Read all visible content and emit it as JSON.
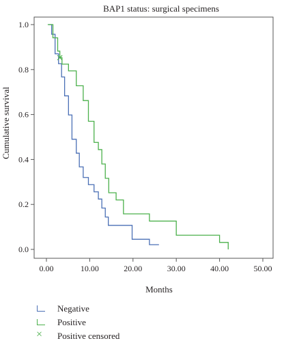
{
  "chart_data": {
    "type": "line",
    "title": "BAP1 status: surgical specimens",
    "xlabel": "Months",
    "ylabel": "Cumulative survival",
    "xlim": [
      0,
      50
    ],
    "ylim": [
      0,
      1.0
    ],
    "x_ticks": [
      "0.00",
      "10.00",
      "20.00",
      "30.00",
      "40.00",
      "50.00"
    ],
    "y_ticks": [
      "0.0",
      "0.2",
      "0.4",
      "0.6",
      "0.8",
      "1.0"
    ],
    "grid": false,
    "legend_placement": "bottom-left",
    "series": [
      {
        "name": "Negative",
        "color": "#4a6fb5",
        "x": [
          0.5,
          1.2,
          2.0,
          2.8,
          3.5,
          4.2,
          5.1,
          5.9,
          6.9,
          7.6,
          8.5,
          9.7,
          11.0,
          12.0,
          12.8,
          13.6,
          14.3,
          15.0,
          19.8,
          23.8,
          26.0
        ],
        "y": [
          1.0,
          0.957,
          0.87,
          0.826,
          0.767,
          0.683,
          0.598,
          0.49,
          0.428,
          0.367,
          0.32,
          0.288,
          0.256,
          0.224,
          0.184,
          0.144,
          0.107,
          0.107,
          0.045,
          0.021,
          0.021
        ]
      },
      {
        "name": "Positive",
        "color": "#4bb04b",
        "x": [
          0.3,
          1.5,
          2.6,
          3.1,
          3.6,
          5.1,
          6.9,
          8.5,
          9.7,
          11.0,
          12.0,
          12.8,
          13.6,
          14.4,
          16.1,
          17.8,
          23.8,
          30.0,
          40.0,
          42.0
        ],
        "y": [
          1.0,
          0.941,
          0.882,
          0.853,
          0.824,
          0.794,
          0.728,
          0.662,
          0.57,
          0.476,
          0.444,
          0.38,
          0.316,
          0.252,
          0.22,
          0.158,
          0.126,
          0.063,
          0.031,
          0.0
        ]
      }
    ],
    "censored": [
      {
        "series": "Positive",
        "x": 3.1,
        "y": 0.853
      }
    ],
    "legend": [
      {
        "label": "Negative",
        "color": "#4a6fb5",
        "marker": "step"
      },
      {
        "label": "Positive",
        "color": "#4bb04b",
        "marker": "step"
      },
      {
        "label": "Positive censored",
        "color": "#4bb04b",
        "marker": "cross"
      }
    ]
  }
}
